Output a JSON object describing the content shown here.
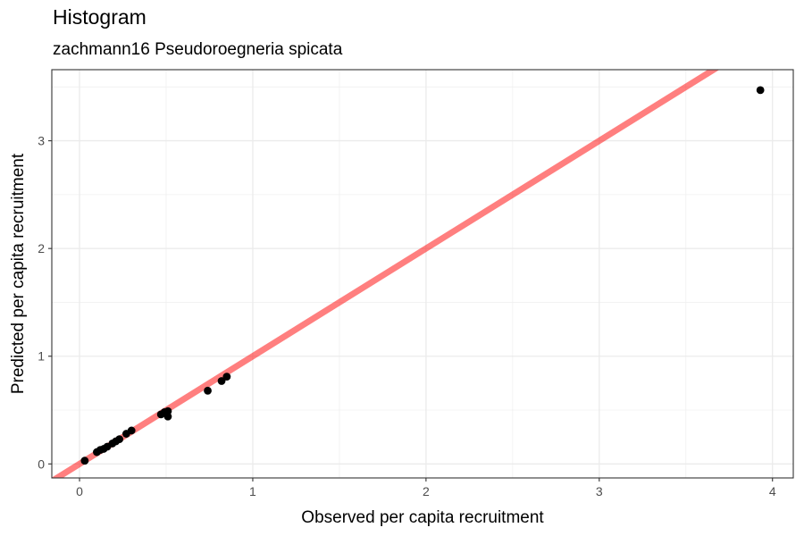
{
  "chart_data": {
    "type": "scatter",
    "title": "Histogram",
    "subtitle": "zachmann16 Pseudoroegneria spicata",
    "xlabel": "Observed per capita recruitment",
    "ylabel": "Predicted per capita recruitment",
    "xlim": [
      -0.16,
      4.12
    ],
    "ylim": [
      -0.13,
      3.66
    ],
    "x_ticks": [
      0,
      1,
      2,
      3,
      4
    ],
    "y_ticks": [
      0,
      1,
      2,
      3
    ],
    "grid": true,
    "reference_line": {
      "slope": 1,
      "intercept": 0,
      "color": "#ff0000",
      "opacity": 0.5
    },
    "point_color": "#000000",
    "points": [
      {
        "x": 0.03,
        "y": 0.03
      },
      {
        "x": 0.1,
        "y": 0.11
      },
      {
        "x": 0.12,
        "y": 0.13
      },
      {
        "x": 0.14,
        "y": 0.14
      },
      {
        "x": 0.16,
        "y": 0.16
      },
      {
        "x": 0.19,
        "y": 0.19
      },
      {
        "x": 0.21,
        "y": 0.21
      },
      {
        "x": 0.23,
        "y": 0.23
      },
      {
        "x": 0.27,
        "y": 0.28
      },
      {
        "x": 0.3,
        "y": 0.31
      },
      {
        "x": 0.47,
        "y": 0.46
      },
      {
        "x": 0.49,
        "y": 0.48
      },
      {
        "x": 0.51,
        "y": 0.49
      },
      {
        "x": 0.51,
        "y": 0.44
      },
      {
        "x": 0.74,
        "y": 0.68
      },
      {
        "x": 0.82,
        "y": 0.77
      },
      {
        "x": 0.85,
        "y": 0.81
      },
      {
        "x": 3.93,
        "y": 3.47
      }
    ]
  }
}
